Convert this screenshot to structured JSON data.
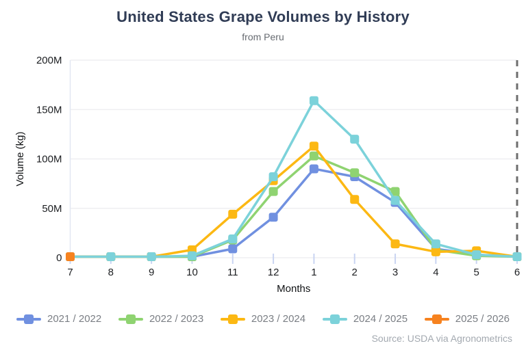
{
  "header": {
    "title": "United States Grape Volumes by History",
    "subtitle": "from Peru"
  },
  "source": "Source: USDA via Agronometrics",
  "chart_data": {
    "type": "line",
    "title": "United States Grape Volumes by History",
    "subtitle": "from Peru",
    "xlabel": "Months",
    "ylabel": "Volume (kg)",
    "categories": [
      "7",
      "8",
      "9",
      "10",
      "11",
      "12",
      "1",
      "2",
      "3",
      "4",
      "5",
      "6"
    ],
    "unit": "million kg",
    "ylim_million": [
      0,
      200
    ],
    "yticks_million": [
      0,
      50,
      100,
      150,
      200
    ],
    "ytick_labels": [
      "0",
      "50M",
      "100M",
      "150M",
      "200M"
    ],
    "grid": true,
    "legend_position": "bottom",
    "annotations": [
      {
        "type": "vline",
        "x_category": "6",
        "style": "dashed",
        "color": "#6e6e6e"
      }
    ],
    "series": [
      {
        "name": "2021 / 2022",
        "color": "#7090e0",
        "values": [
          1,
          1,
          1,
          1,
          9,
          41,
          90,
          82,
          56,
          9,
          3,
          1
        ]
      },
      {
        "name": "2022 / 2023",
        "color": "#8fd371",
        "values": [
          1,
          1,
          1,
          1,
          18,
          67,
          103,
          86,
          67,
          8,
          2,
          1
        ]
      },
      {
        "name": "2023 / 2024",
        "color": "#fcb813",
        "values": [
          1,
          1,
          1,
          8,
          44,
          78,
          113,
          59,
          14,
          6,
          7,
          1
        ]
      },
      {
        "name": "2024 / 2025",
        "color": "#7cd2da",
        "values": [
          1,
          1,
          1,
          2,
          19,
          82,
          159,
          120,
          58,
          14,
          3,
          1
        ]
      },
      {
        "name": "2025 / 2026",
        "color": "#f6821f",
        "values": [
          1,
          null,
          null,
          null,
          null,
          null,
          null,
          null,
          null,
          null,
          null,
          null
        ]
      }
    ],
    "axis_colors": {
      "grid": "#ececef",
      "axis_line": "#e2e7f2",
      "tick": "#c9d4f2",
      "tick_label": "#1c1e21",
      "axis_title": "#111315"
    }
  }
}
